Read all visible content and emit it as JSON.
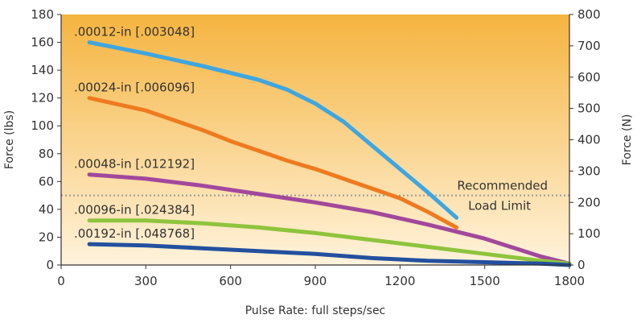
{
  "chart_data": {
    "type": "line",
    "title": "",
    "xlabel": "Pulse Rate: full steps/sec",
    "ylabel": "Force (lbs)",
    "y2label": "Force (N)",
    "xlim": [
      0,
      1800
    ],
    "ylim": [
      0,
      180
    ],
    "y2lim": [
      0,
      800
    ],
    "x_ticks": [
      0,
      300,
      600,
      900,
      1200,
      1500,
      1800
    ],
    "y_ticks": [
      0,
      20,
      40,
      60,
      80,
      100,
      120,
      140,
      160,
      180
    ],
    "y2_ticks": [
      0,
      100,
      200,
      300,
      400,
      500,
      600,
      700,
      800
    ],
    "grid": false,
    "background": {
      "top": "#f5b43f",
      "bottom": "#fff3dc"
    },
    "reference_line": {
      "y": 50,
      "label_line1": "Recommended",
      "label_line2": "Load Limit",
      "color": "#999999"
    },
    "series": [
      {
        "name": ".00012-in [.003048]",
        "color": "#3ea6e0",
        "x": [
          100,
          300,
          500,
          700,
          800,
          900,
          1000,
          1100,
          1200,
          1300,
          1400
        ],
        "y": [
          160,
          152,
          143,
          133,
          126,
          116,
          103,
          86,
          69,
          52,
          34
        ]
      },
      {
        "name": ".00024-in [.006096]",
        "color": "#ef7a1f",
        "x": [
          100,
          300,
          400,
          500,
          600,
          700,
          800,
          900,
          1000,
          1100,
          1200,
          1300,
          1400
        ],
        "y": [
          120,
          111,
          104,
          97,
          89,
          82,
          75,
          69,
          62,
          55,
          48,
          38,
          27
        ]
      },
      {
        "name": ".00048-in [.012192]",
        "color": "#a2489c",
        "x": [
          100,
          300,
          500,
          700,
          900,
          1100,
          1300,
          1500,
          1700,
          1800
        ],
        "y": [
          65,
          62,
          57,
          51,
          45,
          38,
          29,
          19,
          6,
          1
        ]
      },
      {
        "name": ".00096-in [.024384]",
        "color": "#8ec43c",
        "x": [
          100,
          300,
          500,
          700,
          900,
          1100,
          1300,
          1500,
          1700,
          1800
        ],
        "y": [
          32,
          32,
          30,
          27,
          23,
          18,
          13,
          8,
          3,
          1
        ]
      },
      {
        "name": ".00192-in [.048768]",
        "color": "#23509e",
        "x": [
          100,
          300,
          500,
          700,
          900,
          1100,
          1300,
          1500,
          1700,
          1800
        ],
        "y": [
          15,
          14,
          12,
          10,
          8,
          5,
          3,
          2,
          1,
          0
        ]
      }
    ]
  }
}
